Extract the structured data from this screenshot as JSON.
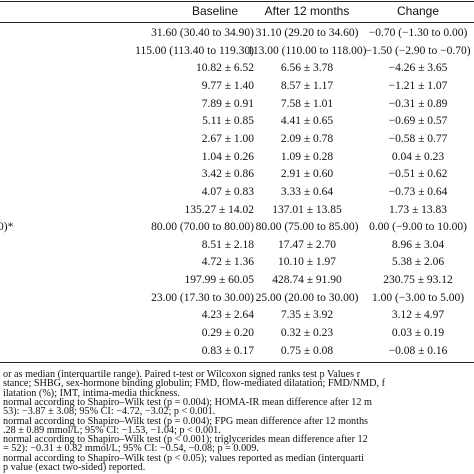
{
  "table": {
    "headers": [
      "Baseline",
      "After 12 months",
      "Change"
    ],
    "rows": [
      {
        "cells": [
          "31.60 (30.40 to 34.90)",
          "31.10 (29.20 to 34.60)",
          "−0.70 (−1.30 to 0.00)"
        ]
      },
      {
        "cells": [
          "115.00 (113.40 to 119.30)",
          "113.00 (110.00 to 118.00)",
          "−1.50 (−2.90 to −0.70)"
        ]
      },
      {
        "cells": [
          "10.82 ± 6.52",
          "6.56 ± 3.78",
          "−4.26 ± 3.65"
        ]
      },
      {
        "cells": [
          "9.77 ± 1.40",
          "8.57 ± 1.17",
          "−1.21 ± 1.07"
        ]
      },
      {
        "cells": [
          "7.89 ± 0.91",
          "7.58 ± 1.01",
          "−0.31 ± 0.89"
        ]
      },
      {
        "cells": [
          "5.11 ± 0.85",
          "4.41 ± 0.65",
          "−0.69 ± 0.57"
        ]
      },
      {
        "cells": [
          "2.67 ± 1.00",
          "2.09 ± 0.78",
          "−0.58 ± 0.77"
        ]
      },
      {
        "cells": [
          "1.04 ± 0.26",
          "1.09 ± 0.28",
          "0.04 ± 0.23"
        ]
      },
      {
        "cells": [
          "3.42 ± 0.86",
          "2.91 ± 0.60",
          "−0.51 ± 0.62"
        ]
      },
      {
        "cells": [
          "4.07 ± 0.83",
          "3.33 ± 0.64",
          "−0.73 ± 0.64"
        ]
      },
      {
        "cells": [
          "135.27 ± 14.02",
          "137.01 ± 13.85",
          "1.73 ± 13.83"
        ]
      },
      {
        "label": "0)*",
        "cells": [
          "80.00 (70.00 to 80.00)",
          "80.00 (75.00 to 85.00)",
          "0.00 (−9.00 to 10.00)"
        ]
      },
      {
        "cells": [
          "8.51 ± 2.18",
          "17.47 ± 2.70",
          "8.96 ± 3.04"
        ]
      },
      {
        "cells": [
          "4.72 ± 1.36",
          "10.10 ± 1.97",
          "5.38 ± 2.06"
        ]
      },
      {
        "cells": [
          "197.99 ± 60.05",
          "428.74 ± 91.90",
          "230.75 ± 93.12"
        ]
      },
      {
        "cells": [
          "23.00 (17.30 to 30.00)",
          "25.00 (20.00 to 30.00)",
          "1.00 (−3.00 to 5.00)"
        ]
      },
      {
        "cells": [
          "4.23 ± 2.64",
          "7.35 ± 3.92",
          "3.12 ± 4.97"
        ]
      },
      {
        "cells": [
          "0.29 ± 0.20",
          "0.32 ± 0.23",
          "0.03 ± 0.19"
        ]
      },
      {
        "cells": [
          "0.83 ± 0.17",
          "0.75 ± 0.08",
          "−0.08 ± 0.16"
        ]
      }
    ]
  },
  "footnotes": [
    "or as median (interquartile range). Paired t-test or Wilcoxon signed ranks test p Values r",
    "stance; SHBG, sex-hormone binding globulin; FMD, flow-mediated dilatation; FMD/NMD, f",
    "ilatation (%); IMT, intima-media thickness.",
    "normal according to Shapiro–Wilk test (p = 0.004); HOMA-IR mean difference after 12 m",
    "53): −3.87 ± 3.08; 95% CI: −4.72, −3.02; p < 0.001.",
    "normal according to Shapiro–Wilk test (p = 0.004); FPG mean difference after 12 months",
    ".28 ± 0.89 mmol/L; 95% CI: −1.53, −1.04; p < 0.001.",
    "normal according to Shapiro–Wilk test (p < 0.001); triglycerides mean difference after 12",
    "= 52): −0.31 ± 0.82 mmol/L; 95% CI: −0.54, −0.08; p = 0.009.",
    "normal according to Shapiro–Wilk test (p < 0.05); values reported as median (interquarti",
    "p value (exact two-sided) reported."
  ]
}
